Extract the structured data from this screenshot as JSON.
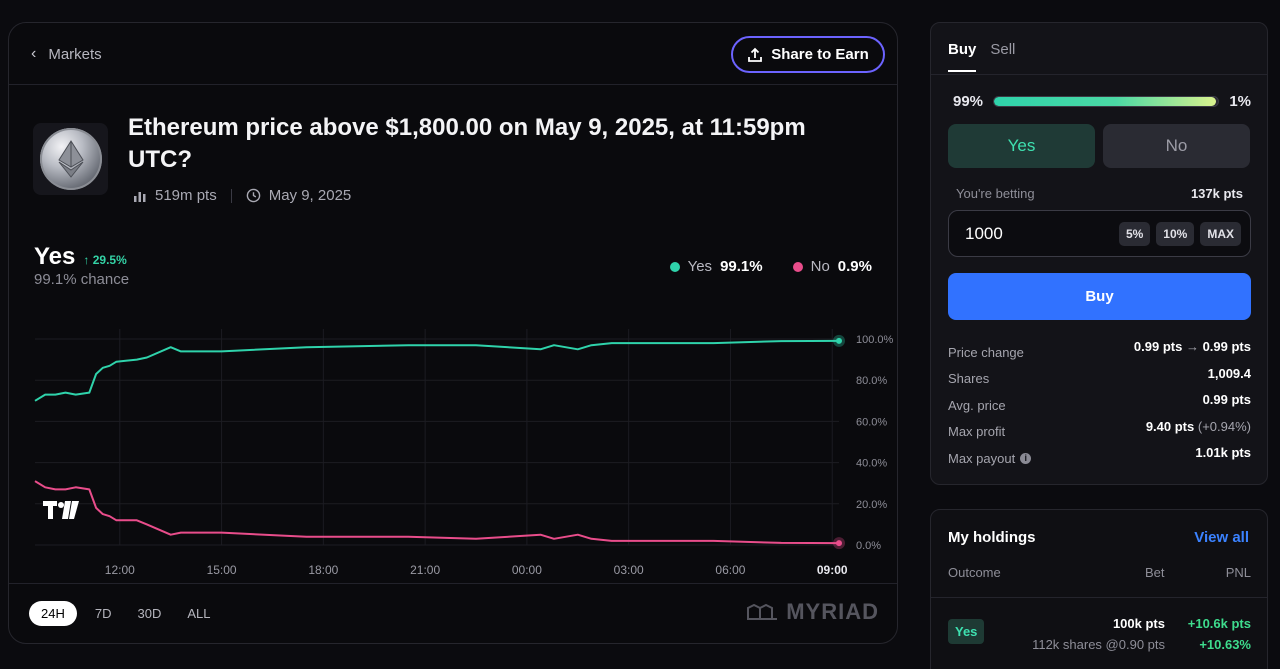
{
  "header": {
    "back_label": "Markets",
    "share_label": "Share to Earn"
  },
  "market": {
    "title": "Ethereum price above $1,800.00 on May 9, 2025, at 11:59pm UTC?",
    "volume": "519m pts",
    "date": "May 9, 2025",
    "leading_outcome": "Yes",
    "change": "29.5%",
    "chance": "99.1% chance"
  },
  "legend": {
    "yes_label": "Yes",
    "yes_value": "99.1%",
    "no_label": "No",
    "no_value": "0.9%"
  },
  "colors": {
    "yes": "#2fd3ab",
    "no": "#e94d8b",
    "accent": "#6c63ff",
    "buy": "#3172ff"
  },
  "chart_data": {
    "type": "line",
    "x_ticks": [
      "12:00",
      "15:00",
      "18:00",
      "21:00",
      "00:00",
      "03:00",
      "06:00",
      "09:00"
    ],
    "y_ticks": [
      "100.0%",
      "80.0%",
      "60.0%",
      "40.0%",
      "20.0%",
      "0.0%"
    ],
    "ylim": [
      0,
      100
    ],
    "grid": true,
    "legend_position": "top-right",
    "series": [
      {
        "name": "Yes",
        "color": "#2fd3ab",
        "x": [
          0.0,
          0.3,
          0.6,
          0.9,
          1.2,
          1.6,
          1.8,
          2.0,
          2.2,
          2.4,
          3.0,
          3.3,
          4.0,
          4.3,
          5.5,
          8.0,
          11.0,
          13.0,
          14.9,
          15.3,
          16.0,
          16.4,
          17.0,
          20.0,
          22.0,
          23.7
        ],
        "values": [
          70,
          73,
          73,
          74,
          73,
          74,
          83,
          86,
          87,
          89,
          90,
          91,
          96,
          94,
          94,
          96,
          97,
          97,
          95,
          97,
          95,
          97,
          98,
          98,
          99,
          99.1
        ]
      },
      {
        "name": "No",
        "color": "#e94d8b",
        "x": [
          0.0,
          0.3,
          0.6,
          0.9,
          1.2,
          1.6,
          1.8,
          2.0,
          2.2,
          2.4,
          3.0,
          3.3,
          4.0,
          4.3,
          5.5,
          8.0,
          11.0,
          13.0,
          14.9,
          15.3,
          16.0,
          16.4,
          17.0,
          20.0,
          22.0,
          23.7
        ],
        "values": [
          31,
          28,
          27,
          27,
          28,
          27,
          18,
          15,
          14,
          12,
          12,
          10,
          5,
          6,
          6,
          4,
          4,
          3,
          5,
          3,
          5,
          3,
          2,
          2,
          1,
          0.9
        ]
      }
    ]
  },
  "range_tabs": [
    "24H",
    "7D",
    "30D",
    "ALL"
  ],
  "brand": "MYRIAD",
  "trade": {
    "tabs": [
      "Buy",
      "Sell"
    ],
    "yes_prob": "99%",
    "no_prob": "1%",
    "prob_fraction": 0.99,
    "yes_label": "Yes",
    "no_label": "No",
    "betting_label": "You're betting",
    "betting_value": "137k pts",
    "amount": "1000",
    "pct_buttons": [
      "5%",
      "10%",
      "MAX"
    ],
    "buy_label": "Buy",
    "stats": [
      {
        "label": "Price change",
        "value_from": "0.99 pts",
        "value_to": "0.99 pts"
      },
      {
        "label": "Shares",
        "value": "1,009.4"
      },
      {
        "label": "Avg. price",
        "value": "0.99 pts"
      },
      {
        "label": "Max profit",
        "value": "9.40 pts",
        "extra": "(+0.94%)"
      },
      {
        "label": "Max payout",
        "value": "1.01k pts"
      }
    ]
  },
  "holdings": {
    "title": "My holdings",
    "view_all": "View all",
    "columns": [
      "Outcome",
      "Bet",
      "PNL"
    ],
    "rows": [
      {
        "outcome": "Yes",
        "bet": "100k pts",
        "shares": "112k shares @0.90 pts",
        "pnl": "+10.6k pts",
        "pnl_pct": "+10.63%"
      }
    ]
  }
}
